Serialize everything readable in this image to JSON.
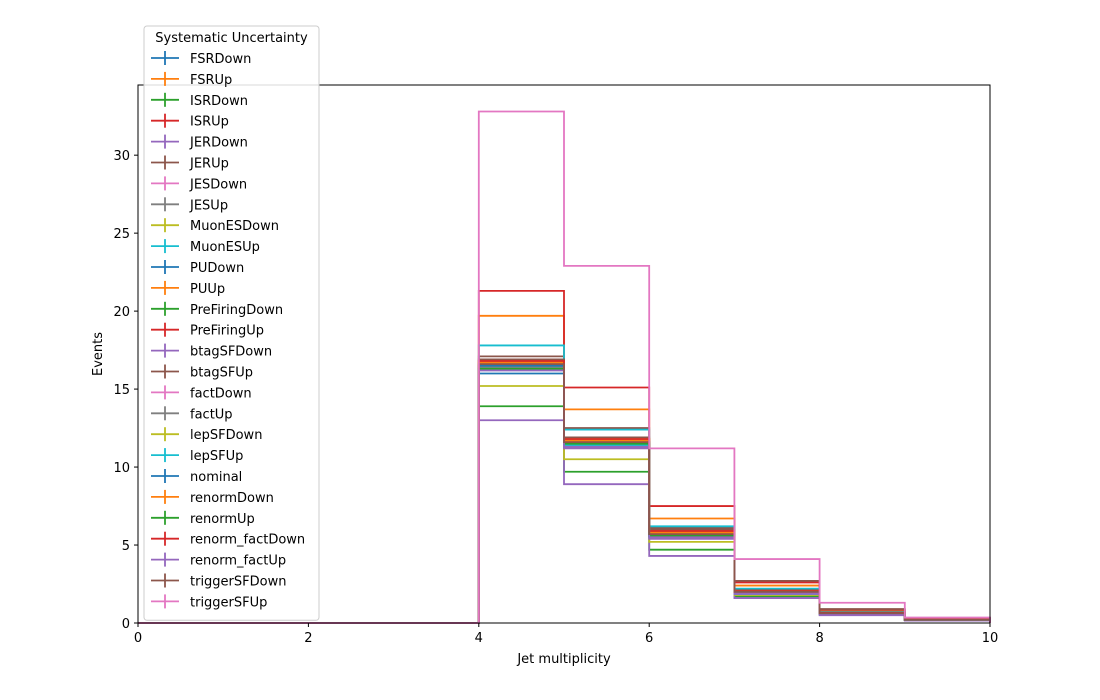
{
  "chart_data": {
    "type": "line",
    "title": "",
    "xlabel": "Jet multiplicity",
    "ylabel": "Events",
    "xlim": [
      0,
      10
    ],
    "ylim": [
      0,
      34.5
    ],
    "xticks": [
      0,
      2,
      4,
      6,
      8,
      10
    ],
    "yticks": [
      0,
      5,
      10,
      15,
      20,
      25,
      30
    ],
    "grid": false,
    "legend_title": "Systematic Uncertainty",
    "legend_position": "upper-left",
    "bin_edges": [
      0,
      1,
      2,
      3,
      4,
      5,
      6,
      7,
      8,
      9,
      10
    ],
    "series": [
      {
        "name": "FSRDown",
        "color": "#1f77b4",
        "values": [
          0,
          0,
          0,
          0,
          16.0,
          11.4,
          5.5,
          1.85,
          0.6,
          0.2
        ]
      },
      {
        "name": "FSRUp",
        "color": "#ff7f0e",
        "values": [
          0,
          0,
          0,
          0,
          19.7,
          13.7,
          6.7,
          2.4,
          0.75,
          0.25
        ]
      },
      {
        "name": "ISRDown",
        "color": "#2ca02c",
        "values": [
          0,
          0,
          0,
          0,
          13.9,
          9.7,
          4.7,
          1.7,
          0.55,
          0.2
        ]
      },
      {
        "name": "ISRUp",
        "color": "#d62728",
        "values": [
          0,
          0,
          0,
          0,
          21.3,
          15.1,
          7.5,
          2.6,
          0.85,
          0.3
        ]
      },
      {
        "name": "JERDown",
        "color": "#9467bd",
        "values": [
          0,
          0,
          0,
          0,
          13.0,
          8.9,
          4.3,
          1.6,
          0.5,
          0.15
        ]
      },
      {
        "name": "JERUp",
        "color": "#8c564b",
        "values": [
          0,
          0,
          0,
          0,
          17.1,
          12.5,
          6.1,
          2.7,
          0.9,
          0.3
        ]
      },
      {
        "name": "JESDown",
        "color": "#e377c2",
        "values": [
          0,
          0,
          0,
          0,
          16.5,
          11.6,
          5.7,
          2.0,
          0.65,
          0.2
        ]
      },
      {
        "name": "JESUp",
        "color": "#7f7f7f",
        "values": [
          0,
          0,
          0,
          0,
          16.6,
          11.7,
          5.8,
          2.1,
          0.7,
          0.22
        ]
      },
      {
        "name": "MuonESDown",
        "color": "#bcbd22",
        "values": [
          0,
          0,
          0,
          0,
          15.2,
          10.5,
          5.2,
          1.8,
          0.6,
          0.2
        ]
      },
      {
        "name": "MuonESUp",
        "color": "#17becf",
        "values": [
          0,
          0,
          0,
          0,
          17.8,
          12.4,
          6.2,
          2.2,
          0.72,
          0.24
        ]
      },
      {
        "name": "PUDown",
        "color": "#1f77b4",
        "values": [
          0,
          0,
          0,
          0,
          16.4,
          11.5,
          5.6,
          1.9,
          0.62,
          0.2
        ]
      },
      {
        "name": "PUUp",
        "color": "#ff7f0e",
        "values": [
          0,
          0,
          0,
          0,
          16.8,
          11.8,
          5.9,
          2.05,
          0.66,
          0.22
        ]
      },
      {
        "name": "PreFiringDown",
        "color": "#2ca02c",
        "values": [
          0,
          0,
          0,
          0,
          16.5,
          11.6,
          5.7,
          1.95,
          0.63,
          0.21
        ]
      },
      {
        "name": "PreFiringUp",
        "color": "#d62728",
        "values": [
          0,
          0,
          0,
          0,
          16.3,
          11.4,
          5.6,
          1.9,
          0.61,
          0.2
        ]
      },
      {
        "name": "btagSFDown",
        "color": "#9467bd",
        "values": [
          0,
          0,
          0,
          0,
          16.2,
          11.2,
          5.4,
          1.85,
          0.6,
          0.2
        ]
      },
      {
        "name": "btagSFUp",
        "color": "#8c564b",
        "values": [
          0,
          0,
          0,
          0,
          16.9,
          11.9,
          6.0,
          2.1,
          0.68,
          0.22
        ]
      },
      {
        "name": "factDown",
        "color": "#e377c2",
        "values": [
          0,
          0,
          0,
          0,
          16.6,
          11.7,
          5.75,
          2.0,
          0.64,
          0.21
        ]
      },
      {
        "name": "factUp",
        "color": "#7f7f7f",
        "values": [
          0,
          0,
          0,
          0,
          16.4,
          11.5,
          5.65,
          1.95,
          0.62,
          0.2
        ]
      },
      {
        "name": "lepSFDown",
        "color": "#bcbd22",
        "values": [
          0,
          0,
          0,
          0,
          16.7,
          11.8,
          5.85,
          2.05,
          0.66,
          0.22
        ]
      },
      {
        "name": "lepSFUp",
        "color": "#17becf",
        "values": [
          0,
          0,
          0,
          0,
          16.3,
          11.4,
          5.55,
          1.9,
          0.61,
          0.2
        ]
      },
      {
        "name": "nominal",
        "color": "#1f77b4",
        "values": [
          0,
          0,
          0,
          0,
          16.5,
          11.6,
          5.7,
          2.0,
          0.64,
          0.21
        ]
      },
      {
        "name": "renormDown",
        "color": "#ff7f0e",
        "values": [
          0,
          0,
          0,
          0,
          16.7,
          11.7,
          5.8,
          2.0,
          0.65,
          0.21
        ]
      },
      {
        "name": "renormUp",
        "color": "#2ca02c",
        "values": [
          0,
          0,
          0,
          0,
          16.3,
          11.5,
          5.6,
          1.95,
          0.62,
          0.2
        ]
      },
      {
        "name": "renorm_factDown",
        "color": "#d62728",
        "values": [
          0,
          0,
          0,
          0,
          16.8,
          11.8,
          5.9,
          2.05,
          0.66,
          0.22
        ]
      },
      {
        "name": "renorm_factUp",
        "color": "#9467bd",
        "values": [
          0,
          0,
          0,
          0,
          16.2,
          11.3,
          5.5,
          1.9,
          0.6,
          0.2
        ]
      },
      {
        "name": "triggerSFDown",
        "color": "#8c564b",
        "values": [
          0,
          0,
          0,
          0,
          16.6,
          11.6,
          5.7,
          2.0,
          0.63,
          0.21
        ]
      },
      {
        "name": "triggerSFUp",
        "color": "#e377c2",
        "values": [
          0,
          0,
          0,
          0,
          32.8,
          22.9,
          11.2,
          4.1,
          1.3,
          0.35
        ]
      }
    ]
  }
}
